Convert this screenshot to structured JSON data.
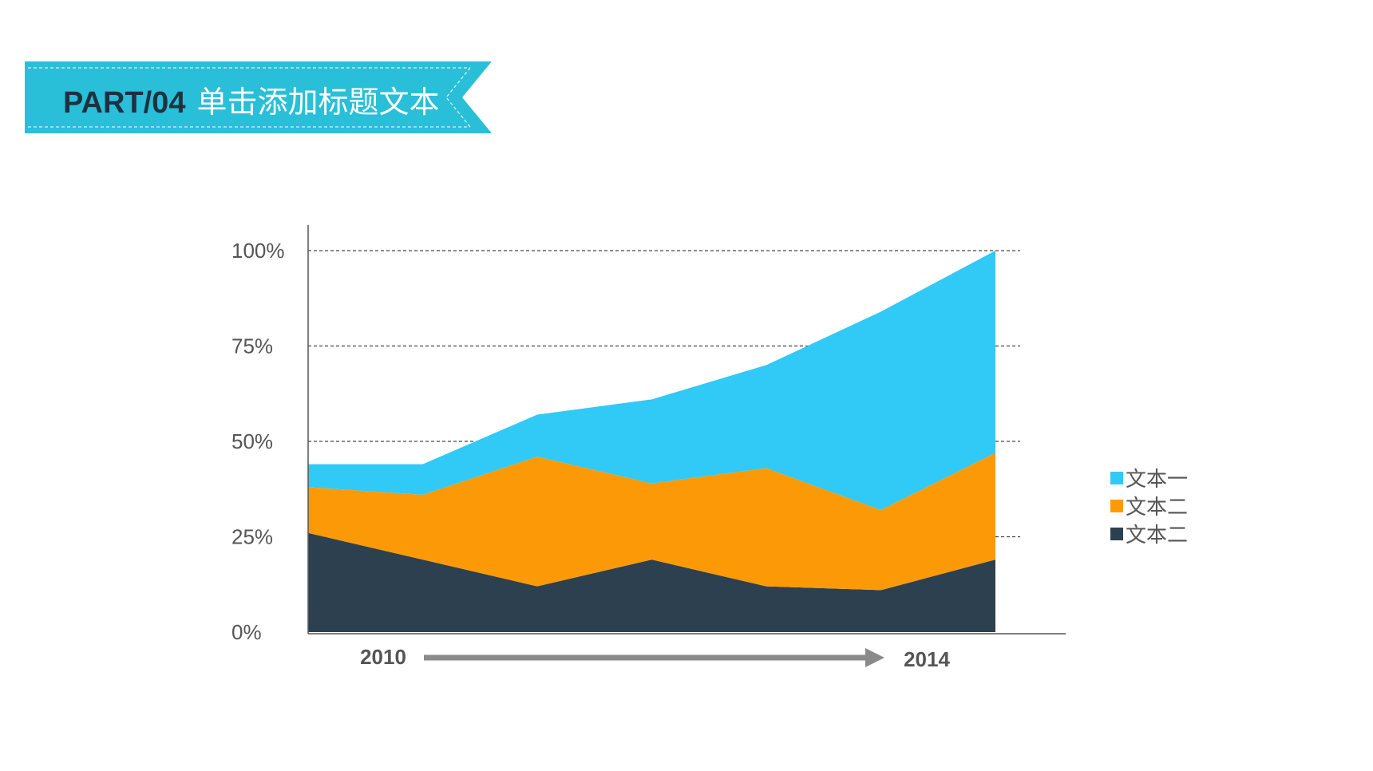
{
  "header": {
    "part_label": "PART/04",
    "title": "单击添加标题文本",
    "banner_color": "#29bfd8"
  },
  "chart_data": {
    "type": "area",
    "stacked": true,
    "title": "",
    "xlabel": "",
    "ylabel": "",
    "x_start_label": "2010",
    "x_end_label": "2014",
    "points": 7,
    "ylim": [
      0,
      100
    ],
    "yticks": [
      "0%",
      "25%",
      "50%",
      "75%",
      "100%"
    ],
    "grid": "horizontal dashed",
    "legend_position": "right",
    "series": [
      {
        "name": "文本二",
        "color": "#2d4050",
        "values": [
          26,
          19,
          12,
          19,
          12,
          11,
          19
        ]
      },
      {
        "name": "文本二",
        "color": "#fb9a06",
        "values": [
          12,
          17,
          34,
          20,
          31,
          21,
          28
        ]
      },
      {
        "name": "文本一",
        "color": "#31c9f5",
        "values": [
          6,
          8,
          11,
          22,
          27,
          52,
          53
        ]
      }
    ],
    "legend": [
      "文本一",
      "文本二",
      "文本二"
    ]
  }
}
